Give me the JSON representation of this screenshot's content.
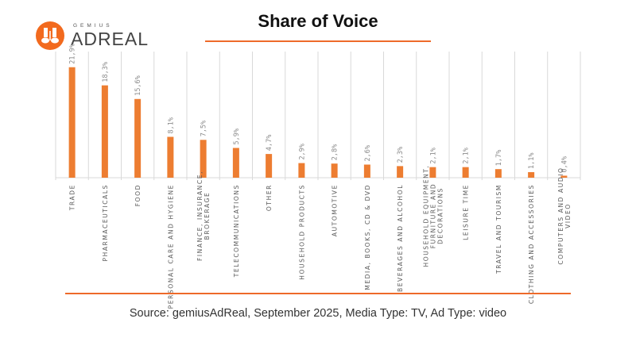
{
  "logo": {
    "small": "GEMIUS",
    "big": "ADREAL"
  },
  "title": "Share of Voice",
  "source": "Source: gemiusAdReal, September 2025, Media Type: TV, Ad Type: video",
  "colors": {
    "bar": "#ed7d31",
    "accent": "#ee6a2a",
    "grid": "#d9d9d9",
    "label": "#595959"
  },
  "chart_data": {
    "type": "bar",
    "title": "Share of Voice",
    "categories": [
      [
        "TRADE"
      ],
      [
        "PHARMACEUTICALS"
      ],
      [
        "FOOD"
      ],
      [
        "PERSONAL CARE AND HYGIENE"
      ],
      [
        "FINANCE, INSURANCE,",
        "BROKERAGE"
      ],
      [
        "TELECOMMUNICATIONS"
      ],
      [
        "OTHER"
      ],
      [
        "HOUSEHOLD PRODUCTS"
      ],
      [
        "AUTOMOTIVE"
      ],
      [
        "MEDIA, BOOKS, CD & DVD"
      ],
      [
        "BEVERAGES AND ALCOHOL"
      ],
      [
        "HOUSEHOLD EQUIPMENT,",
        "FURNITURE AND",
        "DECORATIONS"
      ],
      [
        "LEISURE TIME"
      ],
      [
        "TRAVEL AND TOURISM"
      ],
      [
        "CLOTHING AND ACCESSORIES"
      ],
      [
        "COMPUTERS AND AUDIO",
        "VIDEO"
      ]
    ],
    "values": [
      21.9,
      18.3,
      15.6,
      8.1,
      7.5,
      5.9,
      4.7,
      2.9,
      2.8,
      2.6,
      2.3,
      2.1,
      2.1,
      1.7,
      1.1,
      0.4
    ],
    "data_labels": [
      "21,9%",
      "18,3%",
      "15,6%",
      "8,1%",
      "7,5%",
      "5,9%",
      "4,7%",
      "2,9%",
      "2,8%",
      "2,6%",
      "2,3%",
      "2,1%",
      "2,1%",
      "1,7%",
      "1,1%",
      "0,4%"
    ],
    "ylim": [
      0,
      25
    ],
    "grid": "vertical category separators",
    "legend": "none"
  }
}
